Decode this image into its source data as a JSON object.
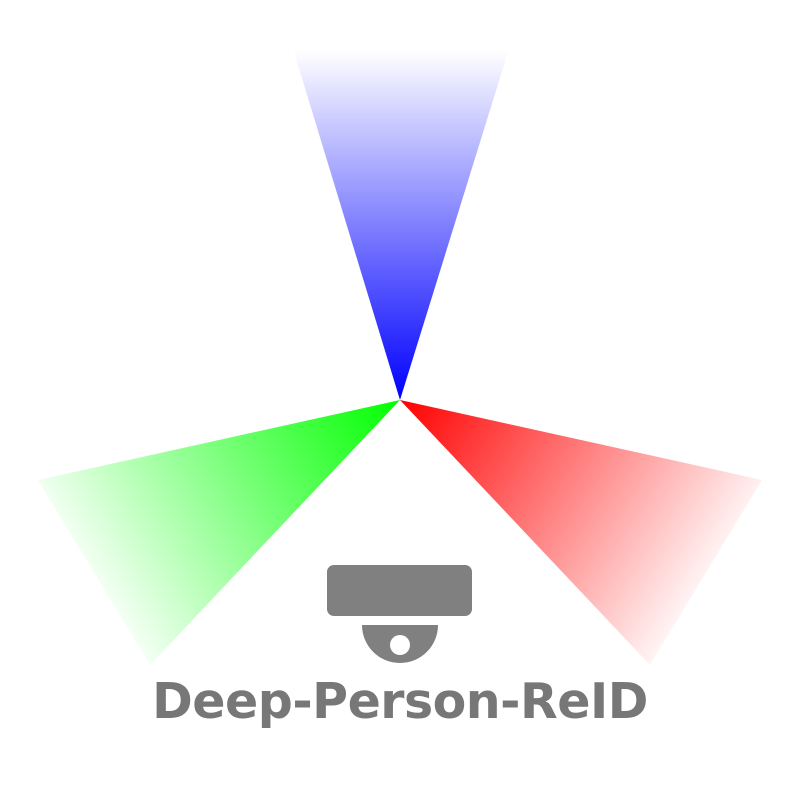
{
  "logo": {
    "text": "Deep-Person-ReID",
    "text_color": "#777777",
    "beams": [
      {
        "name": "blue-beam",
        "color": "#0000ff"
      },
      {
        "name": "red-beam",
        "color": "#ff0000"
      },
      {
        "name": "green-beam",
        "color": "#00ff00"
      }
    ],
    "camera": {
      "icon": "dome-camera-icon",
      "color": "#808080"
    }
  }
}
